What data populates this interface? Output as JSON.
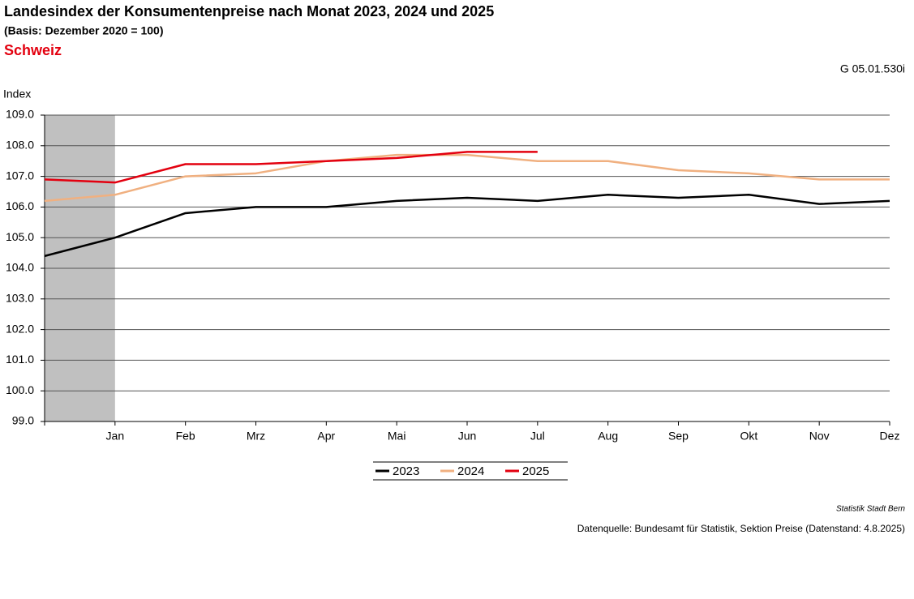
{
  "chart_data": {
    "type": "line",
    "title": "Landesindex der Konsumentenpreise nach Monat 2023, 2024 und 2025",
    "subtitle": "(Basis: Dezember 2020 = 100)",
    "region": "Schweiz",
    "code": "G 05.01.530i",
    "y_label": "Index",
    "categories": [
      null,
      "Jan",
      "Feb",
      "Mrz",
      "Apr",
      "Mai",
      "Jun",
      "Jul",
      "Aug",
      "Sep",
      "Okt",
      "Nov",
      "Dez"
    ],
    "series": [
      {
        "name": "2023",
        "color": "#000000",
        "values": [
          104.4,
          105.0,
          105.8,
          106.0,
          106.0,
          106.2,
          106.3,
          106.2,
          106.4,
          106.3,
          106.4,
          106.1,
          106.2
        ]
      },
      {
        "name": "2024",
        "color": "#f0b080",
        "values": [
          106.2,
          106.4,
          107.0,
          107.1,
          107.5,
          107.7,
          107.7,
          107.5,
          107.5,
          107.2,
          107.1,
          106.9,
          106.9
        ]
      },
      {
        "name": "2025",
        "color": "#e3000f",
        "values": [
          106.9,
          106.8,
          107.4,
          107.4,
          107.5,
          107.6,
          107.8,
          107.8,
          null,
          null,
          null,
          null,
          null
        ]
      }
    ],
    "ylim": [
      99,
      109
    ],
    "yticks": [
      {
        "value": 99,
        "label": "99.0"
      },
      {
        "value": 100,
        "label": "100.0"
      },
      {
        "value": 101,
        "label": "101.0"
      },
      {
        "value": 102,
        "label": "102.0"
      },
      {
        "value": 103,
        "label": "103.0"
      },
      {
        "value": 104,
        "label": "104.0"
      },
      {
        "value": 105,
        "label": "105.0"
      },
      {
        "value": 106,
        "label": "106.0"
      },
      {
        "value": 107,
        "label": "107.0"
      },
      {
        "value": 108,
        "label": "108.0"
      },
      {
        "value": 109,
        "label": "109.0"
      }
    ],
    "grid": true,
    "legend": "bottom",
    "source_org": "Statistik Stadt Bern",
    "source": "Datenquelle: Bundesamt für Statistik, Sektion Preise (Datenstand: 4.8.2025)"
  }
}
